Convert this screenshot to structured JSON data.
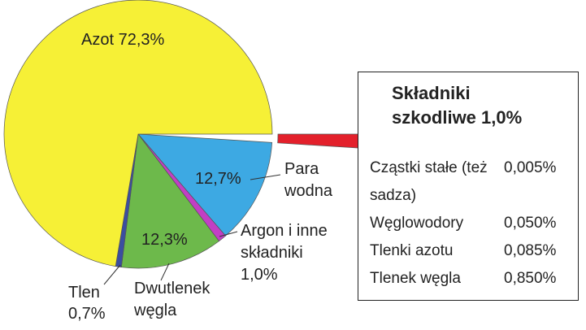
{
  "chart_data": {
    "type": "pie",
    "categories": [
      "Składniki szkodliwe",
      "Para wodna",
      "Argon i inne składniki",
      "Dwutlenek węgla",
      "Tlen",
      "Azot"
    ],
    "values": [
      1.0,
      12.7,
      1.0,
      12.3,
      0.7,
      72.3
    ],
    "value_labels": [
      "1,0%",
      "12,7%",
      "1,0%",
      "12,3%",
      "0,7%",
      "72,3%"
    ],
    "colors": [
      "#e3202b",
      "#3da9e3",
      "#c23fc4",
      "#6db94b",
      "#3b4ea0",
      "#f6f036"
    ],
    "explode": [
      true,
      false,
      false,
      false,
      false,
      false
    ],
    "breakdown": {
      "categories": [
        "Cząstki stałe (też sadza)",
        "Węglowodory",
        "Tlenki azotu",
        "Tlenek węgla"
      ],
      "values": [
        0.005,
        0.05,
        0.085,
        0.85
      ],
      "value_labels": [
        "0,005%",
        "0,050%",
        "0,085%",
        "0,850%"
      ]
    }
  }
}
